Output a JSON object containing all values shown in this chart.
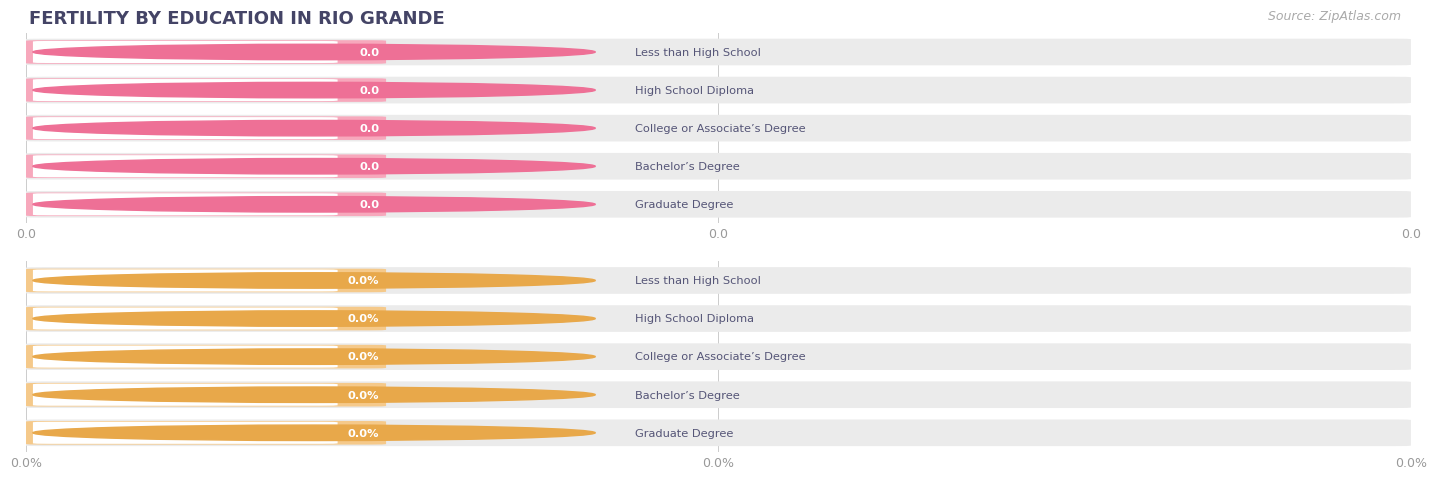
{
  "title": "FERTILITY BY EDUCATION IN RIO GRANDE",
  "source": "Source: ZipAtlas.com",
  "categories": [
    "Less than High School",
    "High School Diploma",
    "College or Associate’s Degree",
    "Bachelor’s Degree",
    "Graduate Degree"
  ],
  "values_top": [
    0.0,
    0.0,
    0.0,
    0.0,
    0.0
  ],
  "values_bottom": [
    0.0,
    0.0,
    0.0,
    0.0,
    0.0
  ],
  "bar_color_top": "#F7A8BC",
  "bar_color_bottom": "#F5C98A",
  "bar_bg_color": "#EBEBEB",
  "white_pill_color": "#FFFFFF",
  "circle_color_top": "#EE7096",
  "circle_color_bottom": "#E8A84A",
  "label_color": "#555577",
  "value_label_color_top": "#F7A8BC",
  "value_label_color_bottom": "#F5C98A",
  "axis_label_color": "#999999",
  "background_color": "#ffffff",
  "title_color": "#444466",
  "source_color": "#aaaaaa",
  "xticks_top_labels": [
    "0.0",
    "0.0",
    "0.0"
  ],
  "xticks_bottom_labels": [
    "0.0%",
    "0.0%",
    "0.0%"
  ],
  "figsize": [
    14.06,
    4.76
  ]
}
